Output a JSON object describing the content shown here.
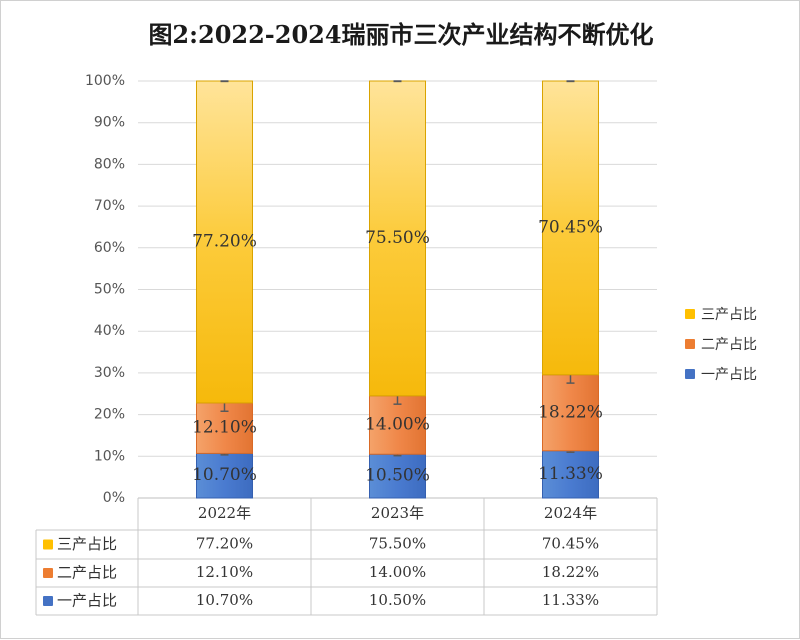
{
  "chart_data": {
    "type": "bar",
    "stacked": true,
    "title": "图2:2022-2024瑞丽市三次产业结构不断优化",
    "categories": [
      "2022年",
      "2023年",
      "2024年"
    ],
    "series": [
      {
        "name": "一产占比",
        "values": [
          10.7,
          10.5,
          11.33
        ],
        "labels": [
          "10.70%",
          "10.50%",
          "11.33%"
        ],
        "color": "#4472c4"
      },
      {
        "name": "二产占比",
        "values": [
          12.1,
          14.0,
          18.22
        ],
        "labels": [
          "12.10%",
          "14.00%",
          "18.22%"
        ],
        "color": "#ed7d31"
      },
      {
        "name": "三产占比",
        "values": [
          77.2,
          75.5,
          70.45
        ],
        "labels": [
          "77.20%",
          "75.50%",
          "70.45%"
        ],
        "color": "#ffc000"
      }
    ],
    "yticks": [
      "0%",
      "10%",
      "20%",
      "30%",
      "40%",
      "50%",
      "60%",
      "70%",
      "80%",
      "90%",
      "100%"
    ],
    "ylim": [
      0,
      100
    ],
    "grid": true,
    "error_bars": true,
    "legend_position": "right",
    "data_table": true
  }
}
